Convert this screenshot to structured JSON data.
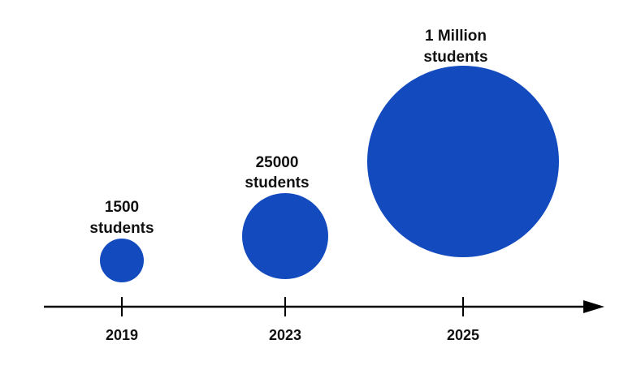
{
  "colors": {
    "bubble": "#134bbf",
    "axis": "#000000",
    "text": "#111111"
  },
  "timeline": [
    {
      "year": "2019",
      "label_line1": "1500",
      "label_line2": "students",
      "students": 1500
    },
    {
      "year": "2023",
      "label_line1": "25000",
      "label_line2": "students",
      "students": 25000
    },
    {
      "year": "2025",
      "label_line1": "1 Million",
      "label_line2": "students",
      "students": 1000000
    }
  ]
}
